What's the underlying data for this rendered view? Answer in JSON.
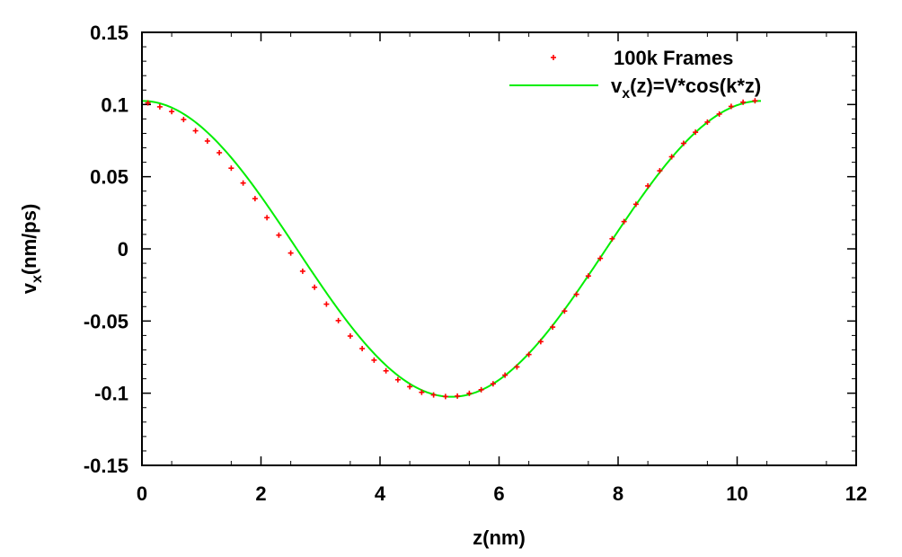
{
  "chart_data": {
    "type": "scatter",
    "title": "",
    "xlabel": "z(nm)",
    "ylabel": {
      "base": "v",
      "sub": "x",
      "rest": "(nm/ps)"
    },
    "xlim": [
      0,
      12
    ],
    "ylim": [
      -0.15,
      0.15
    ],
    "xticks": [
      "0",
      "2",
      "4",
      "6",
      "8",
      "10",
      "12"
    ],
    "xtick_values": [
      0,
      2,
      4,
      6,
      8,
      10,
      12
    ],
    "yticks": [
      "0.15",
      "0.1",
      "0.05",
      "0",
      "-0.05",
      "-0.1",
      "-0.15"
    ],
    "ytick_values": [
      0.15,
      0.1,
      0.05,
      0,
      -0.05,
      -0.1,
      -0.15
    ],
    "grid": false,
    "legend_position": "top-right",
    "series": [
      {
        "name": "100k Frames",
        "kind": "points",
        "color": "#ff0000",
        "x": [
          0.1,
          0.3,
          0.5,
          0.7,
          0.9,
          1.1,
          1.3,
          1.5,
          1.7,
          1.9,
          2.1,
          2.3,
          2.5,
          2.7,
          2.9,
          3.1,
          3.3,
          3.5,
          3.7,
          3.9,
          4.1,
          4.3,
          4.5,
          4.7,
          4.9,
          5.1,
          5.3,
          5.5,
          5.7,
          5.9,
          6.1,
          6.3,
          6.5,
          6.7,
          6.9,
          7.1,
          7.3,
          7.5,
          7.7,
          7.9,
          8.1,
          8.3,
          8.5,
          8.7,
          8.9,
          9.1,
          9.3,
          9.5,
          9.7,
          9.9,
          10.1,
          10.3
        ],
        "y": [
          0.1011,
          0.0984,
          0.0951,
          0.0896,
          0.0818,
          0.0747,
          0.0666,
          0.0559,
          0.0456,
          0.0348,
          0.0216,
          0.0095,
          -0.0029,
          -0.0155,
          -0.0266,
          -0.0383,
          -0.0497,
          -0.0604,
          -0.0691,
          -0.0771,
          -0.0845,
          -0.0907,
          -0.0955,
          -0.0994,
          -0.1012,
          -0.1023,
          -0.102,
          -0.1001,
          -0.0976,
          -0.0935,
          -0.0875,
          -0.0818,
          -0.0732,
          -0.0643,
          -0.0542,
          -0.0431,
          -0.0315,
          -0.0188,
          -0.0066,
          0.007,
          0.0189,
          0.0309,
          0.0436,
          0.0541,
          0.0638,
          0.0731,
          0.0808,
          0.0878,
          0.0934,
          0.0987,
          0.1016,
          0.1026
        ]
      },
      {
        "name_parts": {
          "base": "v",
          "sub": "x",
          "rest": "(z)=V*cos(k*z)"
        },
        "kind": "line",
        "color": "#00ee00",
        "amplitude": 0.1025,
        "period": 10.4,
        "x_range": [
          0,
          10.4
        ]
      }
    ]
  }
}
